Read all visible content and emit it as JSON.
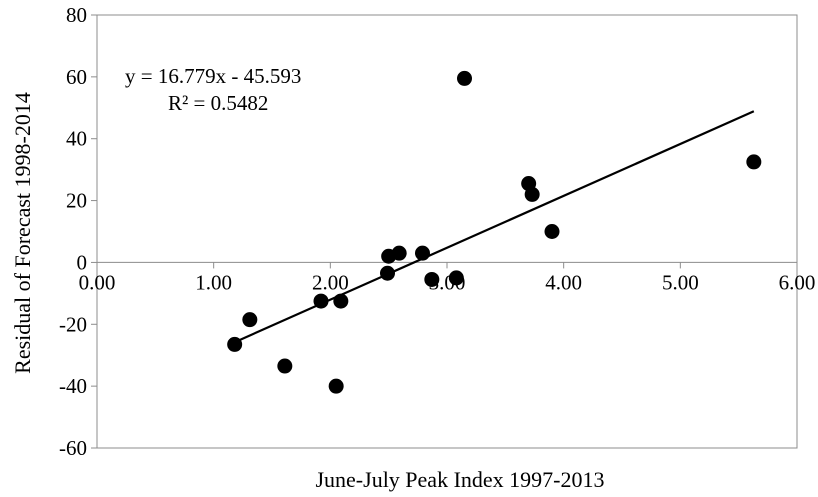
{
  "chart_data": {
    "type": "scatter",
    "title": "",
    "xlabel": "June-July Peak Index 1997-2013",
    "ylabel": "Residual of Forecast 1998-2014",
    "xlim": [
      0,
      6
    ],
    "ylim": [
      -60,
      80
    ],
    "x_ticks": [
      0,
      1,
      2,
      3,
      4,
      5,
      6
    ],
    "x_tick_labels": [
      "0.00",
      "1.00",
      "2.00",
      "3.00",
      "4.00",
      "5.00",
      "6.00"
    ],
    "y_ticks": [
      -60,
      -40,
      -20,
      0,
      20,
      40,
      60,
      80
    ],
    "y_tick_labels": [
      "-60",
      "-40",
      "-20",
      "0",
      "20",
      "40",
      "60",
      "80"
    ],
    "grid": false,
    "legend": "none",
    "point_color": "#000000",
    "line_color": "#000000",
    "points": [
      {
        "x": 1.18,
        "y": -26.5
      },
      {
        "x": 1.31,
        "y": -18.5
      },
      {
        "x": 1.61,
        "y": -33.5
      },
      {
        "x": 1.92,
        "y": -12.5
      },
      {
        "x": 2.05,
        "y": -40.0
      },
      {
        "x": 2.09,
        "y": -12.5
      },
      {
        "x": 2.49,
        "y": -3.5
      },
      {
        "x": 2.5,
        "y": 2.0
      },
      {
        "x": 2.59,
        "y": 3.0
      },
      {
        "x": 2.79,
        "y": 3.0
      },
      {
        "x": 2.87,
        "y": -5.5
      },
      {
        "x": 3.08,
        "y": -5.0
      },
      {
        "x": 3.15,
        "y": 59.5
      },
      {
        "x": 3.7,
        "y": 25.5
      },
      {
        "x": 3.73,
        "y": 22.0
      },
      {
        "x": 3.9,
        "y": 10.0
      },
      {
        "x": 5.63,
        "y": 32.5
      }
    ],
    "trendline": {
      "slope": 16.779,
      "intercept": -45.593,
      "x_range": [
        1.18,
        5.63
      ],
      "equation_label": "y = 16.779x - 45.593",
      "r2_label": "R² = 0.5482"
    }
  }
}
